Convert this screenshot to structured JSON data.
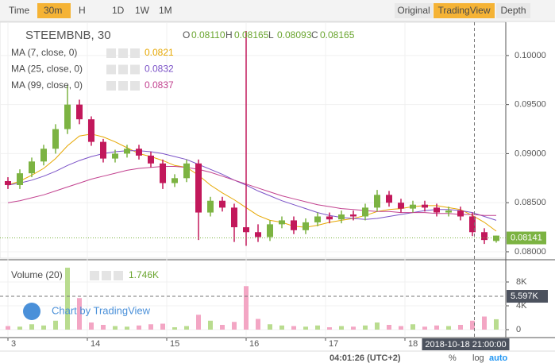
{
  "toolbar": {
    "items": [
      "Time",
      "30m",
      "H",
      "1D",
      "1W",
      "1M"
    ],
    "active": 1,
    "views": [
      "Original",
      "TradingView",
      "Depth"
    ],
    "active_view": 1
  },
  "status_bar": {
    "time": "04:01:26 (UTC+2)",
    "buttons": [
      "%",
      "log",
      "auto"
    ],
    "active": 2
  },
  "chart_data": {
    "type": "candlestick",
    "title": "STEEMBNB, 30",
    "header": [
      {
        "label": "O",
        "value": "0.08110"
      },
      {
        "label": "H",
        "value": "0.08165"
      },
      {
        "label": "L",
        "value": "0.08093"
      },
      {
        "label": "C",
        "value": "0.08165"
      }
    ],
    "up_color": "#7cb342",
    "down_color": "#c2185b",
    "x": [
      13.0,
      13.15,
      13.3,
      13.45,
      13.6,
      13.75,
      13.9,
      14.05,
      14.2,
      14.35,
      14.5,
      14.65,
      14.8,
      14.95,
      15.1,
      15.25,
      15.4,
      15.55,
      15.7,
      15.85,
      16.0,
      16.15,
      16.3,
      16.45,
      16.6,
      16.75,
      16.9,
      17.05,
      17.2,
      17.35,
      17.5,
      17.65,
      17.8,
      17.95,
      18.1,
      18.25,
      18.4,
      18.55,
      18.7,
      18.85,
      19.0,
      19.15
    ],
    "open": [
      0.0872,
      0.0868,
      0.088,
      0.0892,
      0.0905,
      0.0925,
      0.095,
      0.0935,
      0.0912,
      0.0895,
      0.09,
      0.0905,
      0.0898,
      0.089,
      0.087,
      0.0875,
      0.089,
      0.084,
      0.0852,
      0.0845,
      0.0825,
      0.082,
      0.0815,
      0.0828,
      0.0832,
      0.0822,
      0.083,
      0.0836,
      0.0833,
      0.0838,
      0.0836,
      0.0845,
      0.0858,
      0.085,
      0.0844,
      0.0848,
      0.0845,
      0.084,
      0.0842,
      0.0836,
      0.082,
      0.0811
    ],
    "high": [
      0.0876,
      0.0884,
      0.0896,
      0.0909,
      0.093,
      0.097,
      0.0955,
      0.0938,
      0.0915,
      0.0904,
      0.0909,
      0.0909,
      0.0902,
      0.0894,
      0.0879,
      0.0894,
      0.0894,
      0.0856,
      0.0856,
      0.0849,
      0.1025,
      0.0828,
      0.0832,
      0.0836,
      0.0836,
      0.0834,
      0.084,
      0.084,
      0.0842,
      0.0842,
      0.0849,
      0.0863,
      0.0862,
      0.0854,
      0.0852,
      0.0852,
      0.0849,
      0.0846,
      0.0846,
      0.084,
      0.0824,
      0.08165
    ],
    "low": [
      0.0864,
      0.0864,
      0.0876,
      0.0888,
      0.09,
      0.092,
      0.093,
      0.0908,
      0.0891,
      0.0891,
      0.0896,
      0.0894,
      0.0886,
      0.0864,
      0.0866,
      0.0871,
      0.0812,
      0.0836,
      0.0841,
      0.081,
      0.0806,
      0.081,
      0.0811,
      0.0824,
      0.0818,
      0.0818,
      0.0826,
      0.0829,
      0.0829,
      0.0832,
      0.0832,
      0.0841,
      0.0846,
      0.084,
      0.084,
      0.0841,
      0.0836,
      0.0836,
      0.0832,
      0.0816,
      0.0808,
      0.08093
    ],
    "close": [
      0.0868,
      0.088,
      0.0892,
      0.0905,
      0.0925,
      0.095,
      0.0935,
      0.0912,
      0.0895,
      0.09,
      0.0905,
      0.0898,
      0.089,
      0.087,
      0.0875,
      0.089,
      0.084,
      0.0852,
      0.0845,
      0.0825,
      0.082,
      0.0815,
      0.0828,
      0.0832,
      0.0822,
      0.083,
      0.0836,
      0.0833,
      0.0838,
      0.0836,
      0.0845,
      0.0858,
      0.085,
      0.0844,
      0.0848,
      0.0845,
      0.084,
      0.0842,
      0.0836,
      0.082,
      0.0812,
      0.08165
    ],
    "xlim": [
      12.9,
      19.27
    ],
    "xticks": [
      {
        "value": 13,
        "label": "3"
      },
      14,
      15,
      16,
      17,
      18
    ],
    "ylim": [
      0.07935,
      0.10339
    ],
    "yticks": [
      {
        "value": 0.08,
        "label": "0.08000"
      },
      {
        "value": 0.085,
        "label": "0.08500"
      },
      {
        "value": 0.09,
        "label": "0.09000"
      },
      {
        "value": 0.095,
        "label": "0.09500"
      },
      {
        "value": 0.1,
        "label": "0.10000"
      }
    ],
    "overlays": [
      {
        "name": "MA (7, close, 0)",
        "value_label": "0.0821",
        "color": "#e6a700",
        "values": [
          0.0868,
          0.0872,
          0.0878,
          0.0885,
          0.0895,
          0.0908,
          0.0918,
          0.092,
          0.0917,
          0.0912,
          0.0906,
          0.09,
          0.0897,
          0.0893,
          0.0888,
          0.0886,
          0.0878,
          0.0868,
          0.086,
          0.0853,
          0.0845,
          0.0837,
          0.0832,
          0.083,
          0.0826,
          0.0825,
          0.0827,
          0.083,
          0.0832,
          0.0834,
          0.0837,
          0.0841,
          0.0843,
          0.0844,
          0.0846,
          0.0847,
          0.0847,
          0.0845,
          0.0843,
          0.0837,
          0.083,
          0.0821
        ]
      },
      {
        "name": "MA (25, close, 0)",
        "value_label": "0.0832",
        "color": "#7b52c7",
        "values": [
          0.0868,
          0.087,
          0.0873,
          0.0877,
          0.0882,
          0.0888,
          0.0893,
          0.0897,
          0.09,
          0.0902,
          0.0903,
          0.0903,
          0.0902,
          0.09,
          0.0897,
          0.0894,
          0.0889,
          0.0884,
          0.0879,
          0.0873,
          0.0868,
          0.0862,
          0.0857,
          0.0852,
          0.0848,
          0.0844,
          0.084,
          0.0837,
          0.0835,
          0.0834,
          0.0833,
          0.0834,
          0.0836,
          0.0838,
          0.084,
          0.0842,
          0.0843,
          0.0843,
          0.0842,
          0.084,
          0.0836,
          0.0832
        ]
      },
      {
        "name": "MA (99, close, 0)",
        "value_label": "0.0837",
        "color": "#c2418f",
        "values": [
          0.085,
          0.0852,
          0.0855,
          0.0858,
          0.0862,
          0.0866,
          0.087,
          0.0874,
          0.0877,
          0.088,
          0.0883,
          0.0885,
          0.0886,
          0.0887,
          0.0887,
          0.0886,
          0.0884,
          0.0881,
          0.0877,
          0.0873,
          0.0869,
          0.0865,
          0.0861,
          0.0857,
          0.0854,
          0.0851,
          0.0848,
          0.0846,
          0.0844,
          0.0843,
          0.0842,
          0.0841,
          0.0841,
          0.084,
          0.084,
          0.084,
          0.0839,
          0.0839,
          0.0838,
          0.0838,
          0.0837,
          0.0837
        ]
      }
    ],
    "last_price": 0.08141,
    "last_price_color": "#7cb342",
    "crosshair": {
      "x": 18.875,
      "x_label": "2018-10-18 21:00:00",
      "volume": {
        "value": 5597,
        "label": "5.597K"
      }
    },
    "volume": {
      "name": "Volume (20)",
      "value_label": "1.746K",
      "up_color": "#b9dc8f",
      "down_color": "#f3a6c4",
      "values": [
        600,
        500,
        900,
        700,
        1500,
        10400,
        5300,
        1200,
        800,
        600,
        500,
        700,
        900,
        1000,
        400,
        600,
        2500,
        1500,
        800,
        1300,
        7300,
        1800,
        900,
        700,
        600,
        500,
        700,
        400,
        600,
        500,
        700,
        1200,
        800,
        600,
        900,
        500,
        700,
        600,
        800,
        1500,
        2200,
        1746
      ],
      "ylim": [
        -1333,
        11333
      ],
      "yticks": [
        0,
        {
          "value": 4000,
          "label": "4K"
        },
        {
          "value": 8000,
          "label": "8K"
        }
      ]
    },
    "watermark": "Chart by TradingView"
  }
}
